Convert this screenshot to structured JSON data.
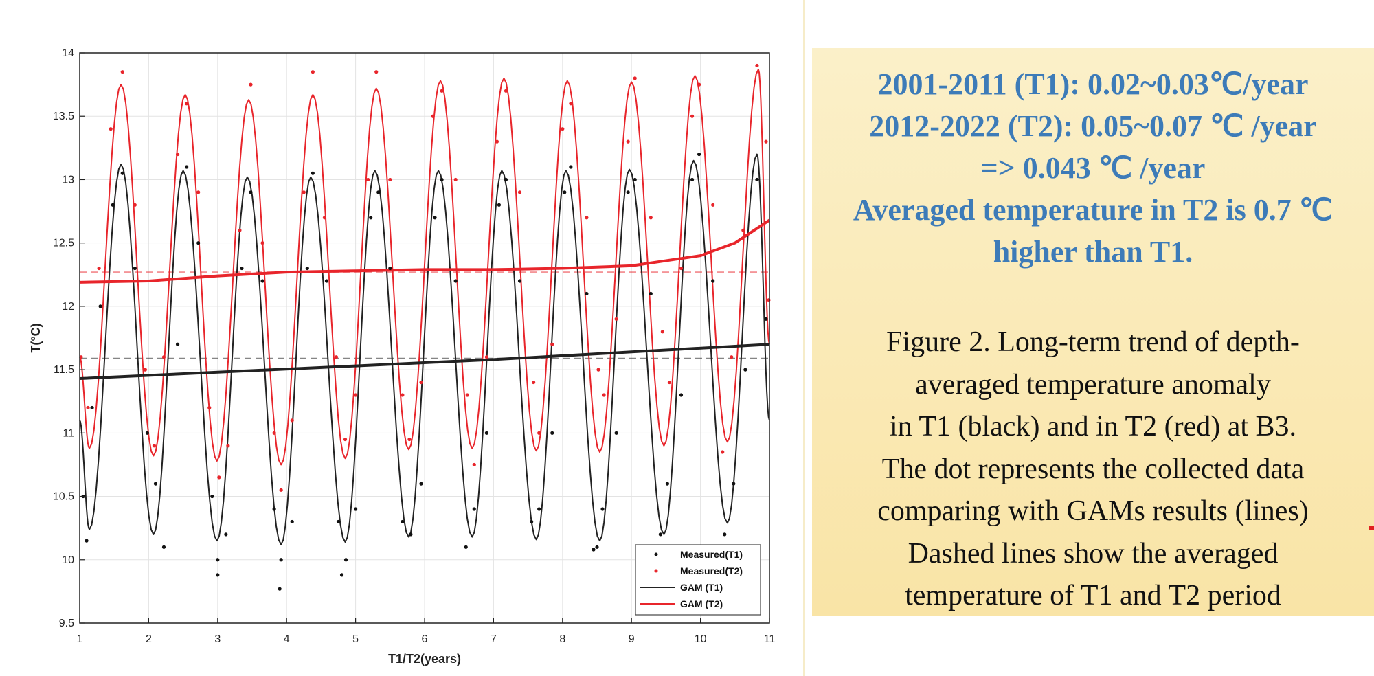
{
  "colors": {
    "t1": "#222222",
    "t2": "#e8252b",
    "t1_dots": "#111111",
    "t2_dots": "#e8252b",
    "accent_text": "#3d7bb8",
    "panel_bg": "#fae8ae"
  },
  "chart_data": {
    "type": "line",
    "title": "",
    "xlabel": "T1/T2(years)",
    "ylabel": "T(°C)",
    "xlim": [
      1,
      11
    ],
    "ylim": [
      9.5,
      14
    ],
    "x_ticks": [
      "1",
      "2",
      "3",
      "4",
      "5",
      "6",
      "7",
      "8",
      "9",
      "10",
      "11"
    ],
    "y_ticks": [
      "9.5",
      "10",
      "10.5",
      "11",
      "11.5",
      "12",
      "12.5",
      "13",
      "13.5",
      "14"
    ],
    "grid": true,
    "legend_position": "bottom-right",
    "legend": [
      "Measured(T1)",
      "Measured(T2)",
      "GAM (T1)",
      "GAM (T2)"
    ],
    "series": [
      {
        "name": "GAM (T1)",
        "kind": "seasonal",
        "peak_x": [
          1.6,
          2.5,
          3.43,
          4.35,
          5.28,
          6.2,
          7.12,
          8.05,
          8.97,
          9.9,
          10.82
        ],
        "peak_y": [
          13.12,
          13.07,
          13.02,
          13.02,
          13.07,
          13.07,
          13.07,
          13.07,
          13.08,
          13.15,
          13.2
        ],
        "trough_x": [
          1.14,
          2.07,
          2.99,
          3.92,
          4.85,
          5.77,
          6.69,
          7.62,
          8.54,
          9.47,
          10.39
        ],
        "trough_y": [
          10.24,
          10.2,
          10.15,
          10.12,
          10.14,
          10.18,
          10.18,
          10.16,
          10.15,
          10.2,
          10.29
        ],
        "start_y": 11.1,
        "end_y": 11.1
      },
      {
        "name": "GAM (T2)",
        "kind": "seasonal",
        "peak_x": [
          1.6,
          2.53,
          3.45,
          4.38,
          5.3,
          6.23,
          7.15,
          8.07,
          9.0,
          9.92,
          10.84
        ],
        "peak_y": [
          13.75,
          13.67,
          13.63,
          13.67,
          13.72,
          13.78,
          13.8,
          13.78,
          13.77,
          13.82,
          13.87
        ],
        "trough_x": [
          1.14,
          2.07,
          2.99,
          3.92,
          4.85,
          5.77,
          6.69,
          7.62,
          8.54,
          9.47,
          10.39
        ],
        "trough_y": [
          10.88,
          10.82,
          10.78,
          10.75,
          10.8,
          10.87,
          10.88,
          10.86,
          10.85,
          10.9,
          10.93
        ],
        "start_y": 11.6,
        "end_y": 11.7
      },
      {
        "name": "T1 trend",
        "kind": "trend",
        "x": [
          1,
          3,
          5,
          7,
          9,
          11
        ],
        "y": [
          11.43,
          11.48,
          11.53,
          11.58,
          11.64,
          11.7
        ]
      },
      {
        "name": "T2 trend",
        "kind": "trend",
        "x": [
          1,
          2,
          3,
          4,
          5,
          6,
          7,
          8,
          9,
          10,
          10.5,
          11
        ],
        "y": [
          12.19,
          12.2,
          12.24,
          12.27,
          12.28,
          12.29,
          12.29,
          12.3,
          12.32,
          12.4,
          12.5,
          12.68
        ]
      },
      {
        "name": "T1 average",
        "kind": "hline",
        "y": 11.59
      },
      {
        "name": "T2 average",
        "kind": "hline",
        "y": 12.27
      },
      {
        "name": "Measured(T1)",
        "kind": "dots",
        "x": [
          1.05,
          1.18,
          1.3,
          1.48,
          1.62,
          1.8,
          1.98,
          2.1,
          2.22,
          2.42,
          2.55,
          2.72,
          2.92,
          3.0,
          3.12,
          3.35,
          3.48,
          3.65,
          3.82,
          3.92,
          4.08,
          4.3,
          4.38,
          4.58,
          4.75,
          4.86,
          5.0,
          5.22,
          5.33,
          5.5,
          5.68,
          5.8,
          5.95,
          6.15,
          6.25,
          6.45,
          6.6,
          6.72,
          6.9,
          7.08,
          7.18,
          7.38,
          7.55,
          7.66,
          7.85,
          8.03,
          8.12,
          8.35,
          8.5,
          8.58,
          8.78,
          8.95,
          9.05,
          9.28,
          9.42,
          9.52,
          9.72,
          9.88,
          9.98,
          10.18,
          10.35,
          10.48,
          10.65,
          10.82,
          10.95,
          1.1,
          3.0,
          3.9,
          4.8,
          8.45
        ],
        "y": [
          10.5,
          11.2,
          12.0,
          12.8,
          13.05,
          12.3,
          11.0,
          10.6,
          10.1,
          11.7,
          13.1,
          12.5,
          10.5,
          10.0,
          10.2,
          12.3,
          12.9,
          12.2,
          10.4,
          10.0,
          10.3,
          12.3,
          13.05,
          12.2,
          10.3,
          10.0,
          10.4,
          12.7,
          12.9,
          12.3,
          10.3,
          10.2,
          10.6,
          12.7,
          13.0,
          12.2,
          10.1,
          10.4,
          11.0,
          12.8,
          13.0,
          12.2,
          10.3,
          10.4,
          11.0,
          12.9,
          13.1,
          12.1,
          10.1,
          10.4,
          11.0,
          12.9,
          13.0,
          12.1,
          10.2,
          10.6,
          11.3,
          13.0,
          13.2,
          12.2,
          10.2,
          10.6,
          11.5,
          13.0,
          11.9,
          10.15,
          9.88,
          9.77,
          9.88,
          10.08
        ]
      },
      {
        "name": "Measured(T2)",
        "kind": "dots",
        "x": [
          1.02,
          1.12,
          1.28,
          1.45,
          1.62,
          1.8,
          1.95,
          2.08,
          2.22,
          2.42,
          2.55,
          2.72,
          2.88,
          3.02,
          3.15,
          3.32,
          3.48,
          3.65,
          3.82,
          3.92,
          4.08,
          4.25,
          4.38,
          4.55,
          4.72,
          4.85,
          5.0,
          5.18,
          5.3,
          5.5,
          5.68,
          5.78,
          5.95,
          6.12,
          6.25,
          6.45,
          6.62,
          6.72,
          6.9,
          7.05,
          7.18,
          7.38,
          7.58,
          7.66,
          7.85,
          8.0,
          8.12,
          8.35,
          8.52,
          8.6,
          8.78,
          8.95,
          9.05,
          9.28,
          9.45,
          9.55,
          9.72,
          9.88,
          9.98,
          10.18,
          10.32,
          10.45,
          10.62,
          10.82,
          10.95,
          10.99
        ],
        "y": [
          11.6,
          11.2,
          12.3,
          13.4,
          13.85,
          12.8,
          11.5,
          10.9,
          11.6,
          13.2,
          13.6,
          12.9,
          11.2,
          10.65,
          10.9,
          12.6,
          13.75,
          12.5,
          11.0,
          10.55,
          11.1,
          12.9,
          13.85,
          12.7,
          11.6,
          10.95,
          11.3,
          13.0,
          13.85,
          13.0,
          11.3,
          10.95,
          11.4,
          13.5,
          13.7,
          13.0,
          11.3,
          10.75,
          11.6,
          13.3,
          13.7,
          12.9,
          11.4,
          11.0,
          11.7,
          13.4,
          13.6,
          12.7,
          11.5,
          11.3,
          11.9,
          13.3,
          13.8,
          12.7,
          11.8,
          11.4,
          12.3,
          13.5,
          13.75,
          12.8,
          10.85,
          11.6,
          12.6,
          13.9,
          13.3,
          12.05
        ]
      }
    ]
  },
  "text_panel": {
    "trend_lines": [
      "2001-2011 (T1): 0.02~0.03℃/year",
      "2012-2022 (T2): 0.05~0.07 ℃ /year",
      "=> 0.043 ℃ /year",
      "Averaged temperature in T2 is 0.7 ℃",
      "higher than T1."
    ],
    "caption_lines": [
      "Figure 2. Long-term trend of depth-",
      "averaged temperature anomaly",
      "in T1 (black) and in T2 (red) at B3.",
      "The dot represents the collected data",
      "comparing with GAMs results (lines)",
      "Dashed lines show the averaged",
      "temperature of T1 and T2 period"
    ]
  }
}
